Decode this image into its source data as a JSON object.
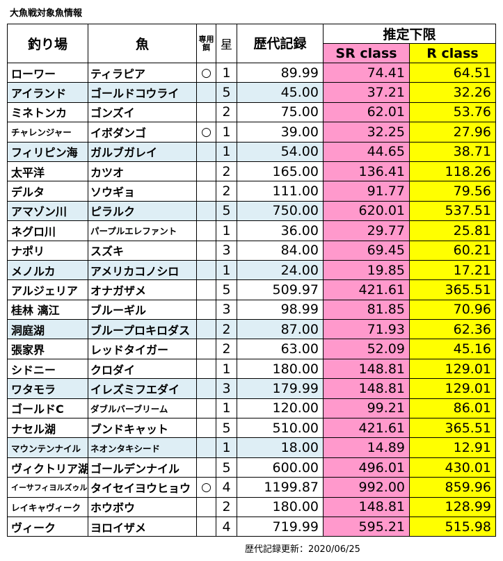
{
  "title": "大魚戦対象魚情報",
  "headers": {
    "spot": "釣り場",
    "fish": "魚",
    "bait": "専用餌",
    "star": "星",
    "record": "歴代記録",
    "limit": "推定下限",
    "sr": "SR class",
    "r": "R class"
  },
  "rows": [
    {
      "spot": "ローワー",
      "fish": "ティラピア",
      "bait": "○",
      "star": "1",
      "record": "89.99",
      "sr": "74.41",
      "r": "64.51"
    },
    {
      "spot": "アイランド",
      "fish": "ゴールドコウライ",
      "bait": "",
      "star": "5",
      "record": "45.00",
      "sr": "37.21",
      "r": "32.26"
    },
    {
      "spot": "ミネトンカ",
      "fish": "ゴンズイ",
      "bait": "",
      "star": "2",
      "record": "75.00",
      "sr": "62.01",
      "r": "53.76"
    },
    {
      "spot": "チャレンジャー",
      "fish": "イボダンゴ",
      "bait": "○",
      "star": "1",
      "record": "39.00",
      "sr": "32.25",
      "r": "27.96"
    },
    {
      "spot": "フィリピン海",
      "fish": "ガルブガレイ",
      "bait": "",
      "star": "1",
      "record": "54.00",
      "sr": "44.65",
      "r": "38.71"
    },
    {
      "spot": "太平洋",
      "fish": "カツオ",
      "bait": "",
      "star": "2",
      "record": "165.00",
      "sr": "136.41",
      "r": "118.26"
    },
    {
      "spot": "デルタ",
      "fish": "ソウギョ",
      "bait": "",
      "star": "2",
      "record": "111.00",
      "sr": "91.77",
      "r": "79.56"
    },
    {
      "spot": "アマゾン川",
      "fish": "ピラルク",
      "bait": "",
      "star": "5",
      "record": "750.00",
      "sr": "620.01",
      "r": "537.51"
    },
    {
      "spot": "ネグロ川",
      "fish": "パープルエレファント",
      "bait": "",
      "star": "1",
      "record": "36.00",
      "sr": "29.77",
      "r": "25.81"
    },
    {
      "spot": "ナポリ",
      "fish": "スズキ",
      "bait": "",
      "star": "3",
      "record": "84.00",
      "sr": "69.45",
      "r": "60.21"
    },
    {
      "spot": "メノルカ",
      "fish": "アメリカコノシロ",
      "bait": "",
      "star": "1",
      "record": "24.00",
      "sr": "19.85",
      "r": "17.21"
    },
    {
      "spot": "アルジェリア",
      "fish": "オナガザメ",
      "bait": "",
      "star": "5",
      "record": "509.97",
      "sr": "421.61",
      "r": "365.51"
    },
    {
      "spot": "桂林 漓江",
      "fish": "ブルーギル",
      "bait": "",
      "star": "3",
      "record": "98.99",
      "sr": "81.85",
      "r": "70.96"
    },
    {
      "spot": "洞庭湖",
      "fish": "ブループロキロダス",
      "bait": "",
      "star": "2",
      "record": "87.00",
      "sr": "71.93",
      "r": "62.36"
    },
    {
      "spot": "張家界",
      "fish": "レッドタイガー",
      "bait": "",
      "star": "2",
      "record": "63.00",
      "sr": "52.09",
      "r": "45.16"
    },
    {
      "spot": "シドニー",
      "fish": "クロダイ",
      "bait": "",
      "star": "1",
      "record": "180.00",
      "sr": "148.81",
      "r": "129.01"
    },
    {
      "spot": "ワタモラ",
      "fish": "イレズミフエダイ",
      "bait": "",
      "star": "3",
      "record": "179.99",
      "sr": "148.81",
      "r": "129.01"
    },
    {
      "spot": "ゴールドC",
      "fish": "ダブルバーブリーム",
      "bait": "",
      "star": "1",
      "record": "120.00",
      "sr": "99.21",
      "r": "86.01"
    },
    {
      "spot": "ナセル湖",
      "fish": "ブンドキャット",
      "bait": "",
      "star": "5",
      "record": "510.00",
      "sr": "421.61",
      "r": "365.51"
    },
    {
      "spot": "マウンテンナイル",
      "fish": "ネオンタキシード",
      "bait": "",
      "star": "1",
      "record": "18.00",
      "sr": "14.89",
      "r": "12.91"
    },
    {
      "spot": "ヴィクトリア湖",
      "fish": "ゴールデンナイル",
      "bait": "",
      "star": "5",
      "record": "600.00",
      "sr": "496.01",
      "r": "430.01"
    },
    {
      "spot": "イーサフィヨルズゥル",
      "fish": "タイセイヨウヒョウ",
      "bait": "○",
      "star": "4",
      "record": "1199.87",
      "sr": "992.00",
      "r": "859.96"
    },
    {
      "spot": "レイキャヴィーク",
      "fish": "ホウボウ",
      "bait": "",
      "star": "2",
      "record": "180.00",
      "sr": "148.81",
      "r": "128.99"
    },
    {
      "spot": "ヴィーク",
      "fish": "ヨロイザメ",
      "bait": "",
      "star": "4",
      "record": "719.99",
      "sr": "595.21",
      "r": "515.98"
    }
  ],
  "footer": "歴代記録更新：2020/06/25"
}
